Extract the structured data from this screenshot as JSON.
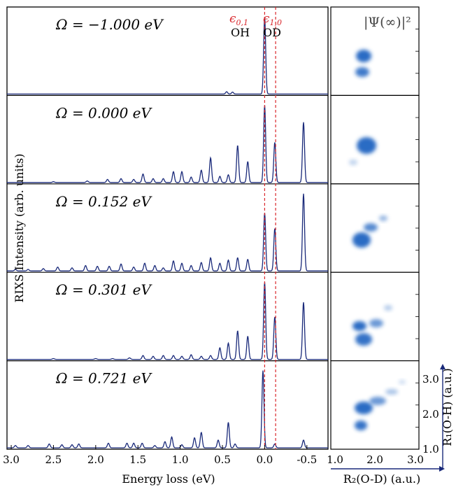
{
  "chart_data": {
    "type": "line",
    "ylabel": "RIXS Intensity (arb. units)",
    "xlabel": "Energy loss (eV)",
    "x_ticks": [
      "3.0",
      "2.5",
      "2.0",
      "1.5",
      "1.0",
      "0.5",
      "0.0",
      "-0.5"
    ],
    "xlim": [
      3.05,
      -0.75
    ],
    "ref_lines": [
      {
        "x": 0.0,
        "label": "ϵ0,1",
        "name": "OH"
      },
      {
        "x": -0.13,
        "label": "ϵ1,0",
        "name": "OD"
      }
    ],
    "line_color": "#1a2a7a",
    "ref_color": "#d9262b",
    "panels": [
      {
        "omega_label": "Ω = −1.000 eV",
        "peaks": [
          [
            0.0,
            1.0
          ],
          [
            0.45,
            0.03
          ],
          [
            0.38,
            0.025
          ]
        ]
      },
      {
        "omega_label": "Ω = 0.000 eV",
        "peaks": [
          [
            0.0,
            1.0
          ],
          [
            -0.12,
            0.52
          ],
          [
            -0.46,
            0.78
          ],
          [
            0.2,
            0.27
          ],
          [
            0.32,
            0.48
          ],
          [
            0.43,
            0.1
          ],
          [
            0.53,
            0.08
          ],
          [
            0.64,
            0.32
          ],
          [
            0.75,
            0.16
          ],
          [
            0.87,
            0.07
          ],
          [
            0.98,
            0.14
          ],
          [
            1.08,
            0.14
          ],
          [
            1.2,
            0.05
          ],
          [
            1.32,
            0.05
          ],
          [
            1.44,
            0.11
          ],
          [
            1.55,
            0.04
          ],
          [
            1.7,
            0.05
          ],
          [
            1.86,
            0.04
          ],
          [
            2.1,
            0.02
          ],
          [
            2.5,
            0.01
          ]
        ]
      },
      {
        "omega_label": "Ω = 0.152 eV",
        "peaks": [
          [
            0.0,
            0.75
          ],
          [
            -0.12,
            0.55
          ],
          [
            -0.46,
            1.0
          ],
          [
            0.2,
            0.15
          ],
          [
            0.32,
            0.17
          ],
          [
            0.43,
            0.14
          ],
          [
            0.53,
            0.1
          ],
          [
            0.64,
            0.17
          ],
          [
            0.75,
            0.11
          ],
          [
            0.87,
            0.07
          ],
          [
            0.98,
            0.1
          ],
          [
            1.08,
            0.13
          ],
          [
            1.2,
            0.04
          ],
          [
            1.3,
            0.07
          ],
          [
            1.42,
            0.1
          ],
          [
            1.55,
            0.05
          ],
          [
            1.7,
            0.09
          ],
          [
            1.84,
            0.06
          ],
          [
            1.98,
            0.06
          ],
          [
            2.12,
            0.07
          ],
          [
            2.28,
            0.04
          ],
          [
            2.45,
            0.05
          ],
          [
            2.62,
            0.03
          ],
          [
            2.8,
            0.02
          ],
          [
            2.95,
            0.02
          ]
        ]
      },
      {
        "omega_label": "Ω = 0.301 eV",
        "peaks": [
          [
            0.0,
            1.0
          ],
          [
            -0.12,
            0.55
          ],
          [
            -0.46,
            0.74
          ],
          [
            0.2,
            0.3
          ],
          [
            0.32,
            0.37
          ],
          [
            0.43,
            0.21
          ],
          [
            0.53,
            0.15
          ],
          [
            0.64,
            0.05
          ],
          [
            0.75,
            0.04
          ],
          [
            0.87,
            0.06
          ],
          [
            0.98,
            0.04
          ],
          [
            1.08,
            0.05
          ],
          [
            1.2,
            0.05
          ],
          [
            1.32,
            0.04
          ],
          [
            1.44,
            0.05
          ],
          [
            1.6,
            0.02
          ],
          [
            1.8,
            0.01
          ],
          [
            2.0,
            0.01
          ],
          [
            2.5,
            0.01
          ]
        ]
      },
      {
        "omega_label": "Ω = 0.721 eV",
        "peaks": [
          [
            0.02,
            1.0
          ],
          [
            -0.12,
            0.05
          ],
          [
            -0.46,
            0.1
          ],
          [
            0.43,
            0.33
          ],
          [
            0.35,
            0.05
          ],
          [
            0.55,
            0.1
          ],
          [
            0.75,
            0.2
          ],
          [
            0.83,
            0.13
          ],
          [
            0.98,
            0.04
          ],
          [
            1.1,
            0.14
          ],
          [
            1.18,
            0.08
          ],
          [
            1.3,
            0.03
          ],
          [
            1.45,
            0.06
          ],
          [
            1.55,
            0.06
          ],
          [
            1.63,
            0.06
          ],
          [
            1.85,
            0.06
          ],
          [
            2.2,
            0.05
          ],
          [
            2.28,
            0.04
          ],
          [
            2.4,
            0.04
          ],
          [
            2.55,
            0.05
          ],
          [
            2.8,
            0.03
          ],
          [
            2.95,
            0.03
          ]
        ]
      }
    ],
    "wavefunction_panel": {
      "title": "|Ψ(∞)|²",
      "xlabel": "R₂(O-D) (a.u.)",
      "ylabel": "R₁(O-H) (a.u.)",
      "x_ticks": [
        "1.0",
        "2.0",
        "3.0"
      ],
      "y_ticks": [
        "3.0",
        "2.0",
        "1.0"
      ],
      "blob_color": "#2a6cc4"
    }
  }
}
